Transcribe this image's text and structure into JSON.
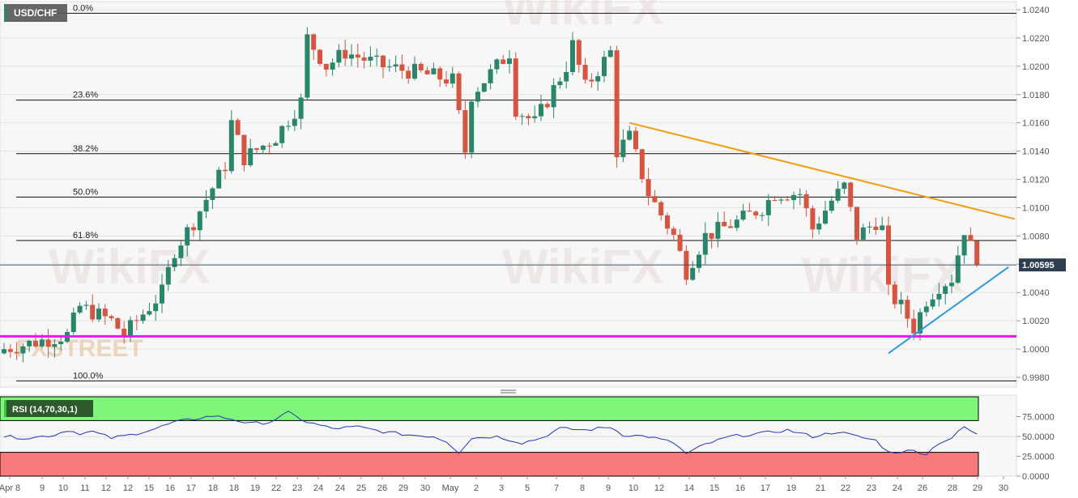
{
  "chart_data": {
    "type": "candlestick",
    "symbol": "USD/CHF",
    "yaxis": {
      "min": 0.997,
      "max": 1.0245,
      "ticks": [
        "1.0240",
        "1.0220",
        "1.0200",
        "1.0180",
        "1.0160",
        "1.0140",
        "1.0120",
        "1.0100",
        "1.0080",
        "1.0060",
        "1.0040",
        "1.0020",
        "1.0000",
        "0.9980"
      ]
    },
    "yaxis_ticks_shown": [
      "1.0240",
      "1.0220",
      "1.0200",
      "1.0180",
      "1.0160",
      "1.0140",
      "1.0120",
      "1.0100",
      "1.0080",
      "1.0040",
      "1.0020",
      "1.0000",
      "0.9980"
    ],
    "xaxis_labels": [
      "Apr 8",
      "9",
      "10",
      "11",
      "12",
      "12",
      "15",
      "16",
      "17",
      "18",
      "18",
      "19",
      "22",
      "23",
      "24",
      "24",
      "25",
      "26",
      "29",
      "30",
      "May",
      "2",
      "3",
      "5",
      "7",
      "8",
      "9",
      "10",
      "12",
      "14",
      "15",
      "16",
      "17",
      "19",
      "21",
      "22",
      "23",
      "24",
      "26",
      "28",
      "29",
      "30"
    ],
    "current_price": "1.00595",
    "fibonacci": [
      {
        "label": "0.0%",
        "price": 1.02375
      },
      {
        "label": "23.6%",
        "price": 1.01761
      },
      {
        "label": "38.2%",
        "price": 1.01382
      },
      {
        "label": "50.0%",
        "price": 1.01075
      },
      {
        "label": "61.8%",
        "price": 1.00768
      },
      {
        "label": "100.0%",
        "price": 0.99775
      }
    ],
    "support_line_price": 1.0009,
    "resistance_trendline": {
      "from": {
        "candle": 99,
        "price": 1.016
      },
      "to": {
        "candle": 160,
        "price": 1.0092
      },
      "color": "#f39c12"
    },
    "support_trendline": {
      "from": {
        "candle": 140,
        "price": 0.9997
      },
      "to": {
        "candle": 159,
        "price": 1.0058
      },
      "color": "#2b9be0"
    },
    "close_path": [
      [
        0,
        1.0
      ],
      [
        10,
        1.001
      ],
      [
        12,
        1.003
      ],
      [
        17,
        1.002
      ],
      [
        19,
        1.001
      ],
      [
        25,
        1.004
      ],
      [
        27,
        1.007
      ],
      [
        30,
        1.009
      ],
      [
        35,
        1.013
      ],
      [
        36,
        1.016
      ],
      [
        38,
        1.0135
      ],
      [
        43,
        1.015
      ],
      [
        47,
        1.0175
      ],
      [
        48,
        1.022
      ],
      [
        51,
        1.02
      ],
      [
        54,
        1.021
      ],
      [
        60,
        1.02
      ],
      [
        66,
        1.0195
      ],
      [
        71,
        1.019
      ],
      [
        73,
        1.014
      ],
      [
        74,
        1.018
      ],
      [
        78,
        1.02
      ],
      [
        80,
        1.021
      ],
      [
        81,
        1.017
      ],
      [
        84,
        1.016
      ],
      [
        89,
        1.02
      ],
      [
        90,
        1.0215
      ],
      [
        92,
        1.0185
      ],
      [
        96,
        1.021
      ],
      [
        97,
        1.014
      ],
      [
        99,
        1.015
      ],
      [
        102,
        1.011
      ],
      [
        106,
        1.008
      ],
      [
        108,
        1.0055
      ],
      [
        111,
        1.008
      ],
      [
        116,
        1.009
      ],
      [
        120,
        1.01
      ],
      [
        122,
        1.011
      ],
      [
        126,
        1.011
      ],
      [
        128,
        1.0085
      ],
      [
        131,
        1.0105
      ],
      [
        133,
        1.0115
      ],
      [
        135,
        1.008
      ],
      [
        138,
        1.009
      ],
      [
        139,
        1.0085
      ],
      [
        140,
        1.004
      ],
      [
        142,
        1.003
      ],
      [
        144,
        1.0015
      ],
      [
        146,
        1.0035
      ],
      [
        148,
        1.0045
      ],
      [
        150,
        1.005
      ],
      [
        152,
        1.0085
      ],
      [
        153,
        1.0072
      ],
      [
        154,
        1.00595
      ]
    ],
    "rsi": {
      "label": "RSI (14,70,30,1)",
      "overbought": 70,
      "oversold": 30,
      "ticks": [
        "75.0000",
        "50.0000",
        "25.0000",
        "0.0000"
      ],
      "path": [
        [
          0,
          50
        ],
        [
          4,
          48
        ],
        [
          8,
          52
        ],
        [
          10,
          58
        ],
        [
          12,
          54
        ],
        [
          14,
          56
        ],
        [
          17,
          48
        ],
        [
          20,
          52
        ],
        [
          24,
          60
        ],
        [
          27,
          68
        ],
        [
          30,
          72
        ],
        [
          33,
          76
        ],
        [
          36,
          72
        ],
        [
          39,
          66
        ],
        [
          42,
          68
        ],
        [
          45,
          80
        ],
        [
          48,
          68
        ],
        [
          52,
          60
        ],
        [
          56,
          62
        ],
        [
          60,
          56
        ],
        [
          64,
          52
        ],
        [
          68,
          50
        ],
        [
          70,
          44
        ],
        [
          72,
          30
        ],
        [
          74,
          48
        ],
        [
          78,
          50
        ],
        [
          82,
          42
        ],
        [
          85,
          48
        ],
        [
          88,
          60
        ],
        [
          92,
          58
        ],
        [
          96,
          62
        ],
        [
          98,
          52
        ],
        [
          102,
          50
        ],
        [
          106,
          42
        ],
        [
          108,
          28
        ],
        [
          111,
          40
        ],
        [
          115,
          50
        ],
        [
          120,
          54
        ],
        [
          124,
          58
        ],
        [
          128,
          50
        ],
        [
          132,
          56
        ],
        [
          135,
          50
        ],
        [
          138,
          45
        ],
        [
          140,
          30
        ],
        [
          144,
          32
        ],
        [
          146,
          28
        ],
        [
          148,
          42
        ],
        [
          150,
          48
        ],
        [
          152,
          62
        ],
        [
          154,
          52
        ]
      ]
    },
    "colors": {
      "up": "#26876b",
      "down": "#d9533e",
      "support": "#e619e6",
      "rsi_line": "#2233bb",
      "overbought_fill": "#7ff67a",
      "oversold_fill": "#f77a7a"
    },
    "watermarks": [
      "WikiFX",
      "FXSTREET"
    ]
  }
}
